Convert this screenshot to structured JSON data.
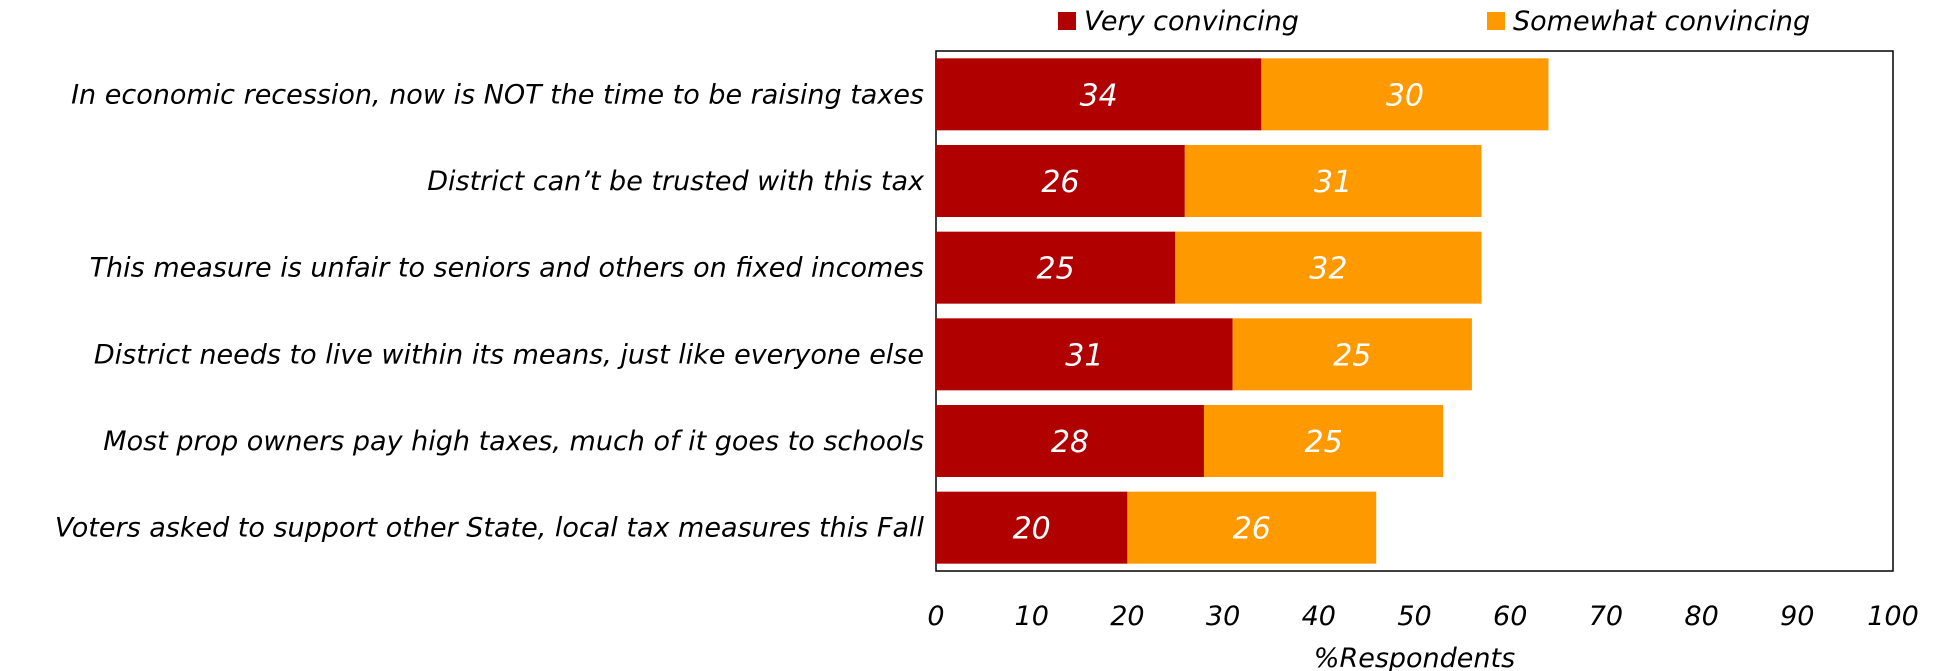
{
  "chart_data": {
    "type": "bar",
    "orientation": "horizontal",
    "stacked": true,
    "categories": [
      "In economic recession, now is NOT the time to be raising taxes",
      "District can’t be trusted with this tax",
      "This measure is unfair to seniors and others on fixed incomes",
      "District needs to live within its means, just like everyone else",
      "Most prop owners pay high taxes, much of it goes to schools",
      "Voters asked to support other State, local tax measures this Fall"
    ],
    "series": [
      {
        "name": "Very convincing",
        "color": "#b00000",
        "values": [
          34,
          26,
          25,
          31,
          28,
          20
        ]
      },
      {
        "name": "Somewhat convincing",
        "color": "#ff9900",
        "values": [
          30,
          31,
          32,
          25,
          25,
          26
        ]
      }
    ],
    "xlabel": "%Respondents",
    "xlim": [
      0,
      100
    ],
    "xticks": [
      0,
      10,
      20,
      30,
      40,
      50,
      60,
      70,
      80,
      90,
      100
    ],
    "grid": false,
    "legend_position": "top"
  }
}
